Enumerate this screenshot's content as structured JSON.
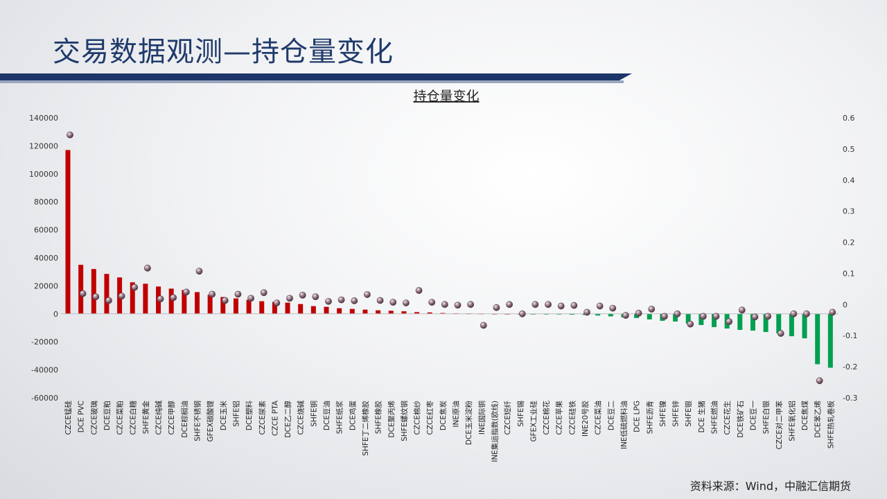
{
  "page": {
    "title": "交易数据观测—持仓量变化",
    "source": "资料来源：Wind，中融汇信期货"
  },
  "colors": {
    "positive_bar": "#c00000",
    "negative_bar": "#00a050",
    "marker": "#8a6a78",
    "title_blue": "#1f3a6b"
  },
  "chart_data": {
    "type": "bar",
    "title": "持仓量变化",
    "ylim": [
      -60000,
      140000
    ],
    "y_ticks": [
      140000,
      120000,
      100000,
      80000,
      60000,
      40000,
      20000,
      0,
      -20000,
      -40000,
      -60000
    ],
    "y2lim": [
      -0.3,
      0.6
    ],
    "y2_ticks": [
      "0.6",
      "0.5",
      "0.4",
      "0.3",
      "0.2",
      "0.1",
      "0",
      "-0.1",
      "-0.2",
      "-0.3"
    ],
    "grid": false,
    "categories": [
      "CZCE锰硅",
      "DCE PVC",
      "CZCE玻璃",
      "DCE豆粕",
      "CZCE菜粕",
      "CZCE白糖",
      "SHFE黄金",
      "CZCE纯碱",
      "CZCE甲醇",
      "DCE棕榈油",
      "SHFE不锈钢",
      "GFEX碳酸锂",
      "DCE玉米",
      "SHFE铝",
      "DCE塑料",
      "CZCE尿素",
      "CZCE PTA",
      "DCE乙二醇",
      "CZCE烧碱",
      "SHFE铜",
      "DCE豆油",
      "SHFE纸浆",
      "DCE鸡蛋",
      "SHFE丁二烯橡胶",
      "SHFE橡胶",
      "DCE聚丙烯",
      "SHFE螺纹钢",
      "CZCE棉纱",
      "CZCE红枣",
      "DCE焦炭",
      "INE原油",
      "DCE玉米淀粉",
      "INE国际铜",
      "INE集运指数(欧线)",
      "CZCE短纤",
      "SHFE锡",
      "GFEX工业硅",
      "CZCE棉花",
      "CZCE苹果",
      "CZCE硅铁",
      "INE20号胶",
      "CZCE菜油",
      "DCE豆二",
      "INE低硫燃料油",
      "DCE LPG",
      "SHFE沥青",
      "SHFE镍",
      "SHFE锌",
      "SHFE银",
      "DCE 生猪",
      "SHFE燃油",
      "CZCE花生",
      "DCE铁矿石",
      "DCE豆一",
      "SHFE白银",
      "CZCE对二甲苯",
      "SHFE氧化铝",
      "DCE焦煤",
      "DCE苯乙烯",
      "SHFE热轧卷板"
    ],
    "series": [
      {
        "axis": "left",
        "kind": "bar",
        "values": [
          117000,
          35000,
          32000,
          28500,
          26000,
          22500,
          21500,
          19500,
          18000,
          17000,
          15500,
          13500,
          12000,
          11000,
          10000,
          9000,
          8500,
          8000,
          7000,
          5500,
          5000,
          4000,
          3500,
          3000,
          2500,
          2200,
          1800,
          1200,
          1000,
          600,
          400,
          300,
          200,
          100,
          50,
          0,
          -100,
          -200,
          -400,
          -600,
          -800,
          -1200,
          -1800,
          -2500,
          -3000,
          -4000,
          -5000,
          -5500,
          -7000,
          -8000,
          -9500,
          -10500,
          -11500,
          -12000,
          -13000,
          -14000,
          -16000,
          -17500,
          -36000,
          -38500
        ]
      },
      {
        "axis": "right",
        "kind": "marker",
        "values": [
          0.545,
          0.035,
          0.025,
          0.013,
          0.027,
          0.055,
          0.117,
          0.018,
          0.022,
          0.04,
          0.107,
          0.033,
          0.013,
          0.033,
          0.02,
          0.038,
          0.005,
          0.02,
          0.03,
          0.025,
          0.01,
          0.015,
          0.012,
          0.032,
          0.013,
          0.007,
          0.005,
          0.045,
          0.007,
          0.0,
          -0.002,
          0.0,
          -0.067,
          -0.01,
          0.0,
          -0.03,
          0.0,
          0.0,
          -0.005,
          -0.003,
          -0.025,
          -0.005,
          -0.012,
          -0.035,
          -0.028,
          -0.015,
          -0.038,
          -0.03,
          -0.063,
          -0.038,
          -0.038,
          -0.055,
          -0.018,
          -0.04,
          -0.038,
          -0.093,
          -0.03,
          -0.03,
          -0.245,
          -0.025
        ]
      }
    ]
  }
}
